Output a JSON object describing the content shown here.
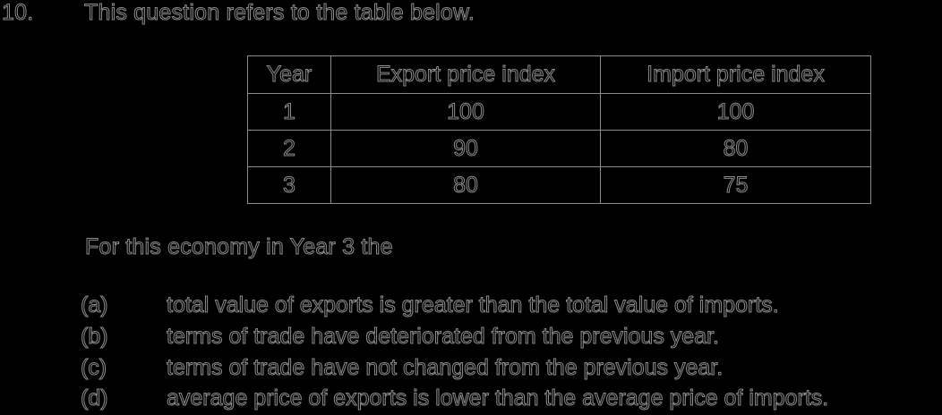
{
  "question": {
    "number": "10.",
    "stem": "This question refers to the table below.",
    "prompt": "For this economy in Year 3 the"
  },
  "table": {
    "headers": [
      "Year",
      "Export price index",
      "Import price index"
    ],
    "rows": [
      [
        "1",
        "100",
        "100"
      ],
      [
        "2",
        "90",
        "80"
      ],
      [
        "3",
        "80",
        "75"
      ]
    ]
  },
  "options": [
    {
      "letter": "(a)",
      "text": "total value of exports is greater than the total value of imports."
    },
    {
      "letter": "(b)",
      "text": "terms of trade have deteriorated from the previous year."
    },
    {
      "letter": "(c)",
      "text": "terms of trade have not changed from the previous year."
    },
    {
      "letter": "(d)",
      "text": "average price of exports is lower than the average price of imports."
    }
  ],
  "colors": {
    "background": "#000000",
    "text_outline": "#8c8c8c",
    "table_border": "#8c8c8c"
  }
}
